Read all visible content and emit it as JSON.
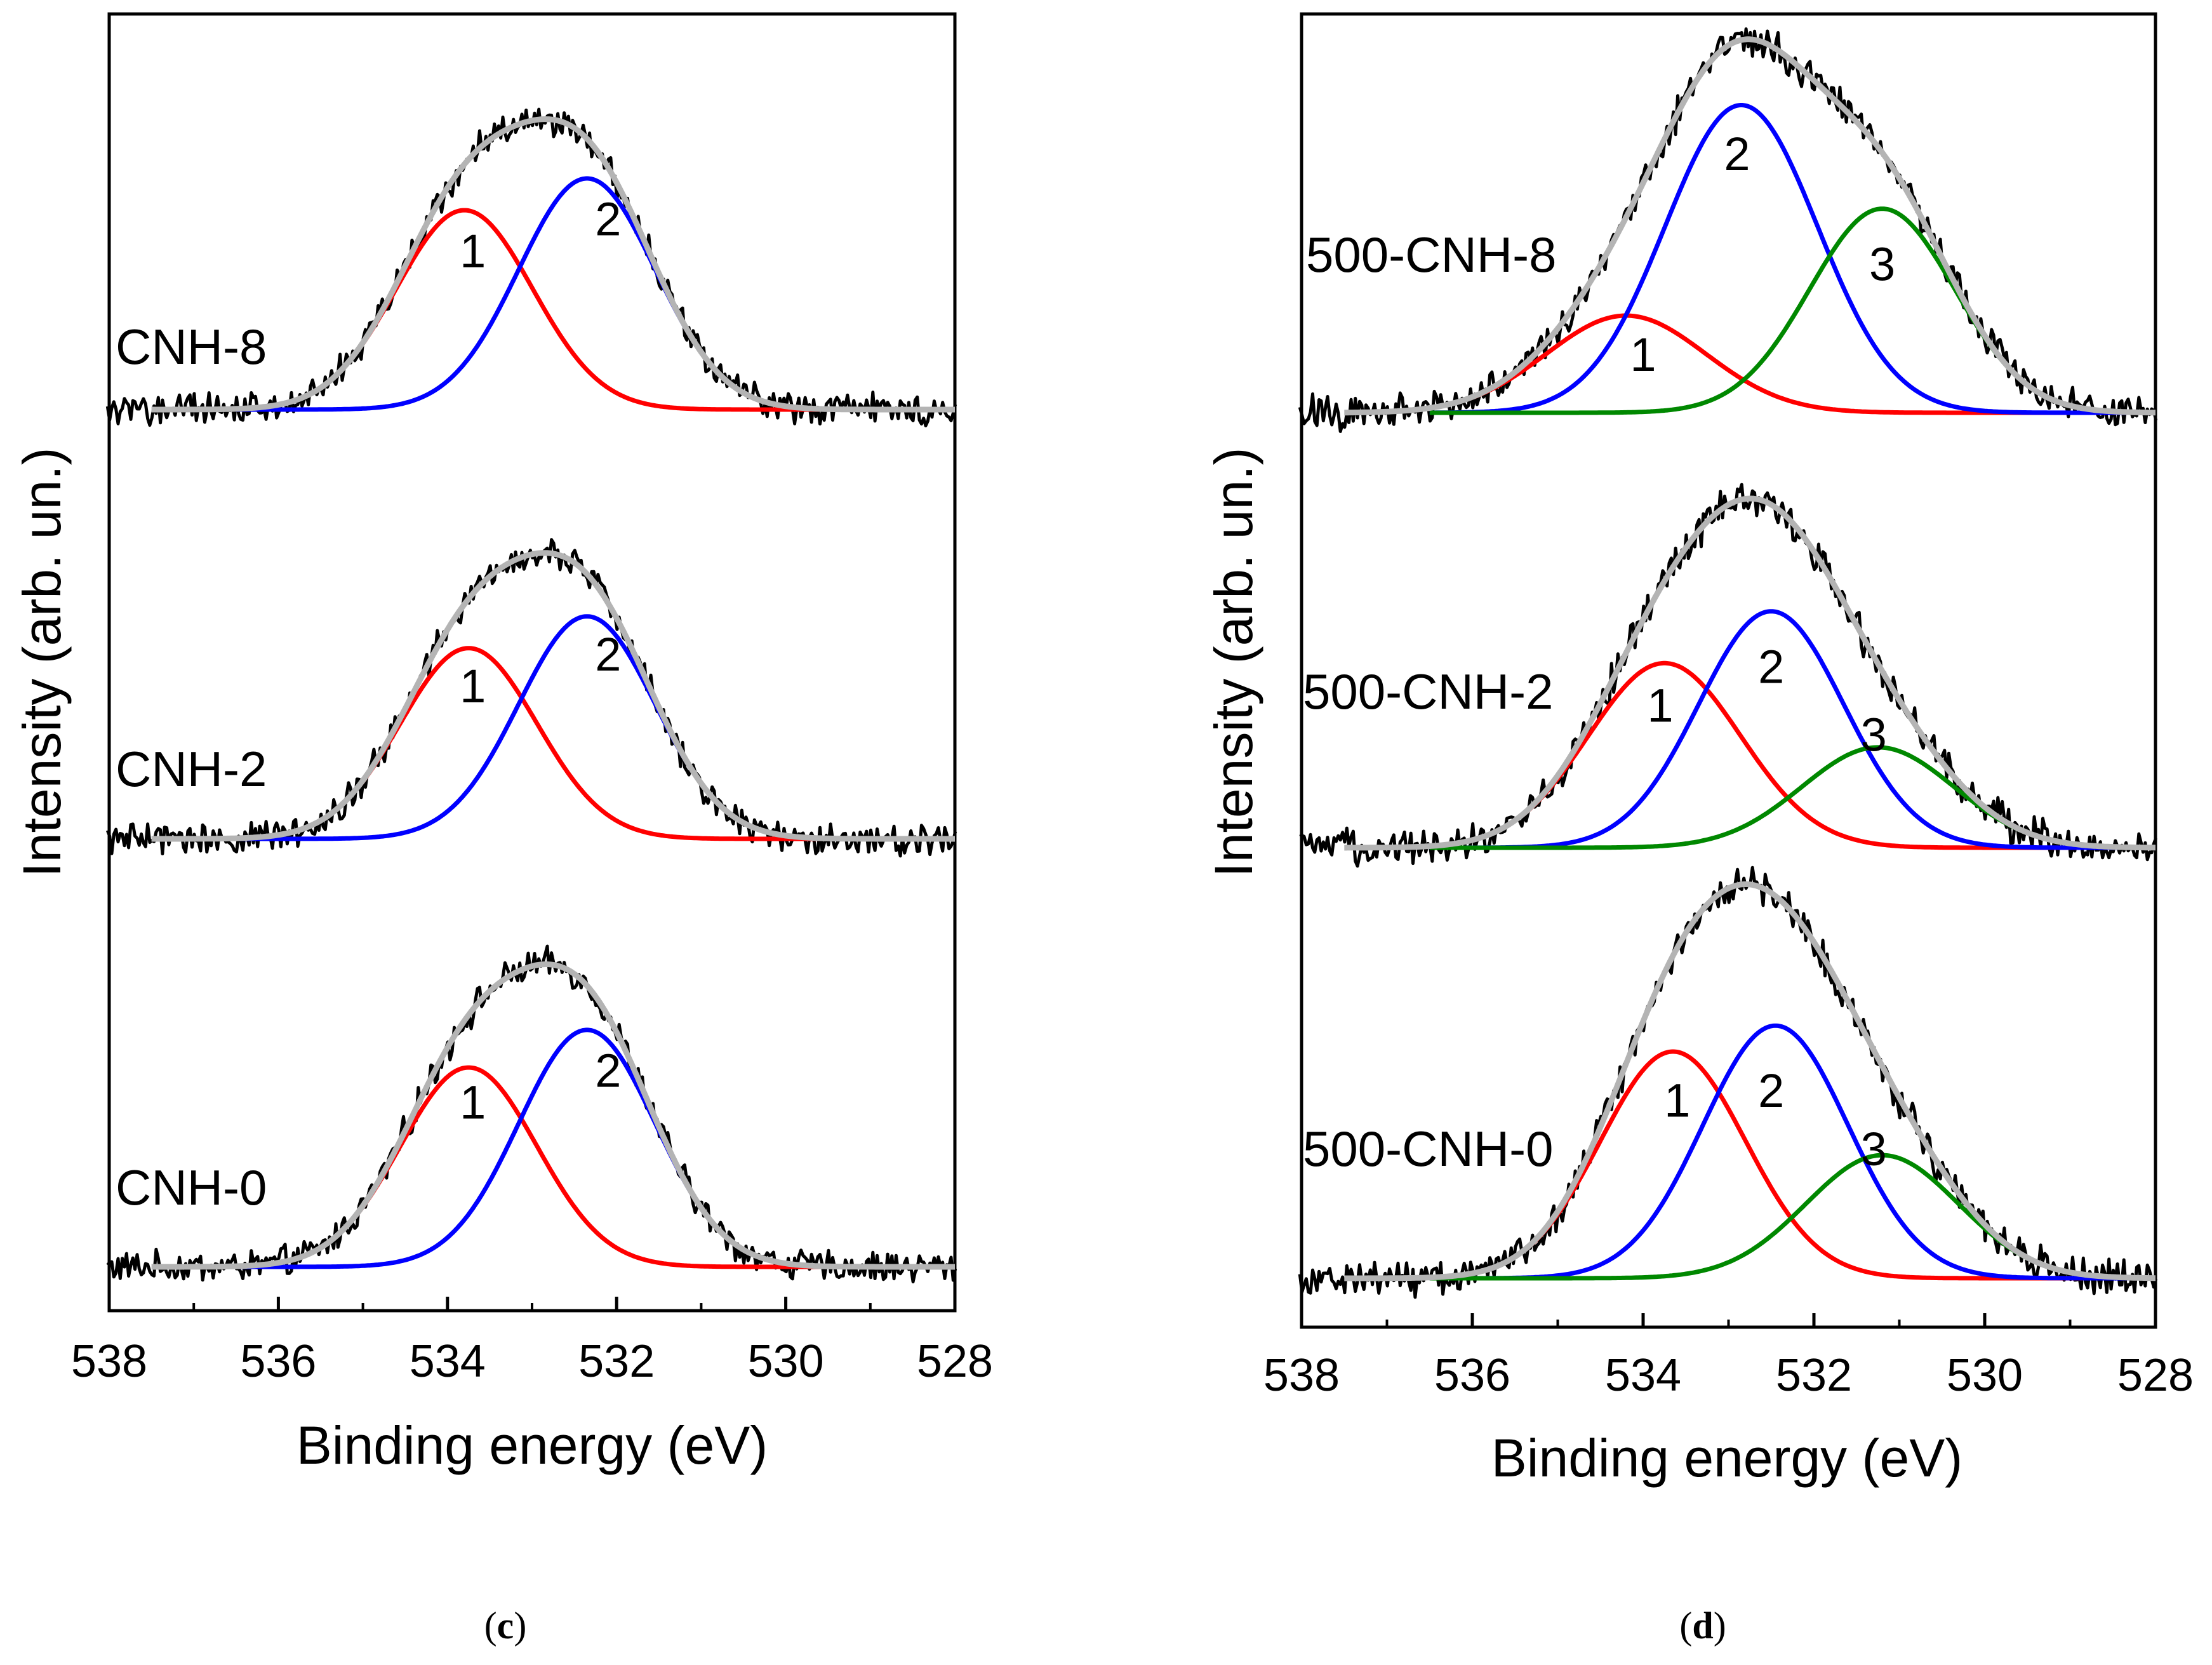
{
  "colors": {
    "component_1": "#ff0000",
    "component_2": "#0000ff",
    "component_3": "#008800",
    "envelope": "#b4b4b4",
    "experimental": "#000000"
  },
  "chart_data": [
    {
      "type": "line",
      "panel": "c",
      "panel_letter": "c",
      "xlabel": "Binding energy (eV)",
      "ylabel": "Intensity (arb. un.)",
      "xlim": [
        538,
        528
      ],
      "x_reversed": true,
      "x_ticks": [
        "538",
        "536",
        "534",
        "532",
        "530",
        "528"
      ],
      "stack_order": "bottom-to-top",
      "spectra": [
        {
          "label": "CNH-0",
          "peaks": [
            {
              "name": "1",
              "center": 533.75,
              "height": 0.69,
              "fwhm": 1.9
            },
            {
              "name": "2",
              "center": 532.35,
              "height": 0.82,
              "fwhm": 1.9
            }
          ],
          "peak_label_positions": [
            [
              533.7,
              0.57
            ],
            [
              532.1,
              0.68
            ]
          ]
        },
        {
          "label": "CNH-2",
          "peaks": [
            {
              "name": "1",
              "center": 533.75,
              "height": 0.66,
              "fwhm": 1.9
            },
            {
              "name": "2",
              "center": 532.35,
              "height": 0.77,
              "fwhm": 1.9
            }
          ],
          "peak_label_positions": [
            [
              533.7,
              0.53
            ],
            [
              532.1,
              0.64
            ]
          ]
        },
        {
          "label": "CNH-8",
          "peaks": [
            {
              "name": "1",
              "center": 533.8,
              "height": 0.69,
              "fwhm": 1.9
            },
            {
              "name": "2",
              "center": 532.35,
              "height": 0.8,
              "fwhm": 1.9
            }
          ],
          "peak_label_positions": [
            [
              533.7,
              0.55
            ],
            [
              532.1,
              0.66
            ]
          ]
        }
      ]
    },
    {
      "type": "line",
      "panel": "d",
      "panel_letter": "d",
      "xlabel": "Binding energy (eV)",
      "ylabel": "Intensity (arb. un.)",
      "xlim": [
        538,
        528
      ],
      "x_reversed": true,
      "x_ticks": [
        "538",
        "536",
        "534",
        "532",
        "530",
        "528"
      ],
      "stack_order": "bottom-to-top",
      "spectra": [
        {
          "label": "500-CNH-0",
          "peaks": [
            {
              "name": "1",
              "center": 533.65,
              "height": 0.7,
              "fwhm": 2.0
            },
            {
              "name": "2",
              "center": 532.45,
              "height": 0.78,
              "fwhm": 2.0
            },
            {
              "name": "3",
              "center": 531.2,
              "height": 0.38,
              "fwhm": 2.1
            }
          ],
          "peak_label_positions": [
            [
              533.6,
              0.55
            ],
            [
              532.5,
              0.58
            ],
            [
              531.3,
              0.4
            ]
          ]
        },
        {
          "label": "500-CNH-2",
          "peaks": [
            {
              "name": "1",
              "center": 533.75,
              "height": 0.57,
              "fwhm": 2.1
            },
            {
              "name": "2",
              "center": 532.5,
              "height": 0.73,
              "fwhm": 2.0
            },
            {
              "name": "3",
              "center": 531.25,
              "height": 0.31,
              "fwhm": 2.1
            }
          ],
          "peak_label_positions": [
            [
              533.8,
              0.44
            ],
            [
              532.5,
              0.56
            ],
            [
              531.3,
              0.35
            ]
          ]
        },
        {
          "label": "500-CNH-8",
          "peaks": [
            {
              "name": "1",
              "center": 534.2,
              "height": 0.3,
              "fwhm": 2.2
            },
            {
              "name": "2",
              "center": 532.85,
              "height": 0.95,
              "fwhm": 2.1
            },
            {
              "name": "3",
              "center": 531.2,
              "height": 0.63,
              "fwhm": 2.0
            }
          ],
          "peak_label_positions": [
            [
              534.0,
              0.18
            ],
            [
              532.9,
              0.8
            ],
            [
              531.2,
              0.46
            ]
          ]
        }
      ]
    }
  ]
}
